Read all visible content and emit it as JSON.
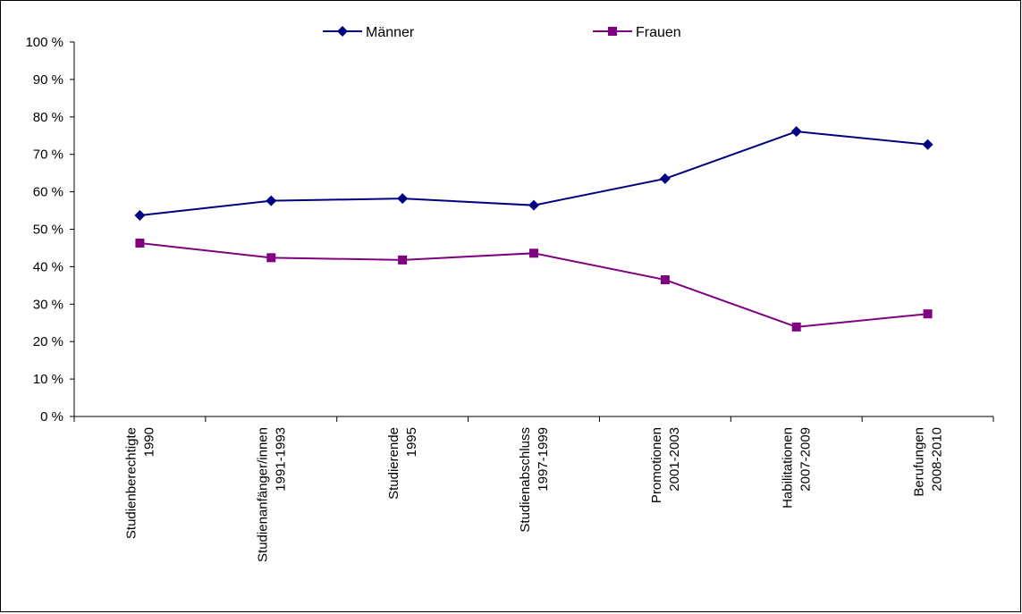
{
  "chart_data": {
    "type": "line",
    "categories": [
      [
        "Studienberechtigte",
        "1990"
      ],
      [
        "Studienanfänger/innen",
        "1991-1993"
      ],
      [
        "Studierende",
        "1995"
      ],
      [
        "Studienabschluss",
        "1997-1999"
      ],
      [
        "Promotionen",
        "2001-2003"
      ],
      [
        "Habilitationen",
        "2007-2009"
      ],
      [
        "Berufungen",
        "2008-2010"
      ]
    ],
    "series": [
      {
        "name": "Männer",
        "values": [
          53.7,
          57.6,
          58.2,
          56.4,
          63.5,
          76.1,
          72.6
        ],
        "color": "#000080",
        "marker": "diamond"
      },
      {
        "name": "Frauen",
        "values": [
          46.3,
          42.4,
          41.8,
          43.6,
          36.5,
          23.9,
          27.4
        ],
        "color": "#800080",
        "marker": "square"
      }
    ],
    "yticks": [
      "0 %",
      "10 %",
      "20 %",
      "30 %",
      "40 %",
      "50 %",
      "60 %",
      "70 %",
      "80 %",
      "90 %",
      "100 %"
    ],
    "ylim": [
      0,
      100
    ],
    "grid": false,
    "legend_position": "top"
  }
}
